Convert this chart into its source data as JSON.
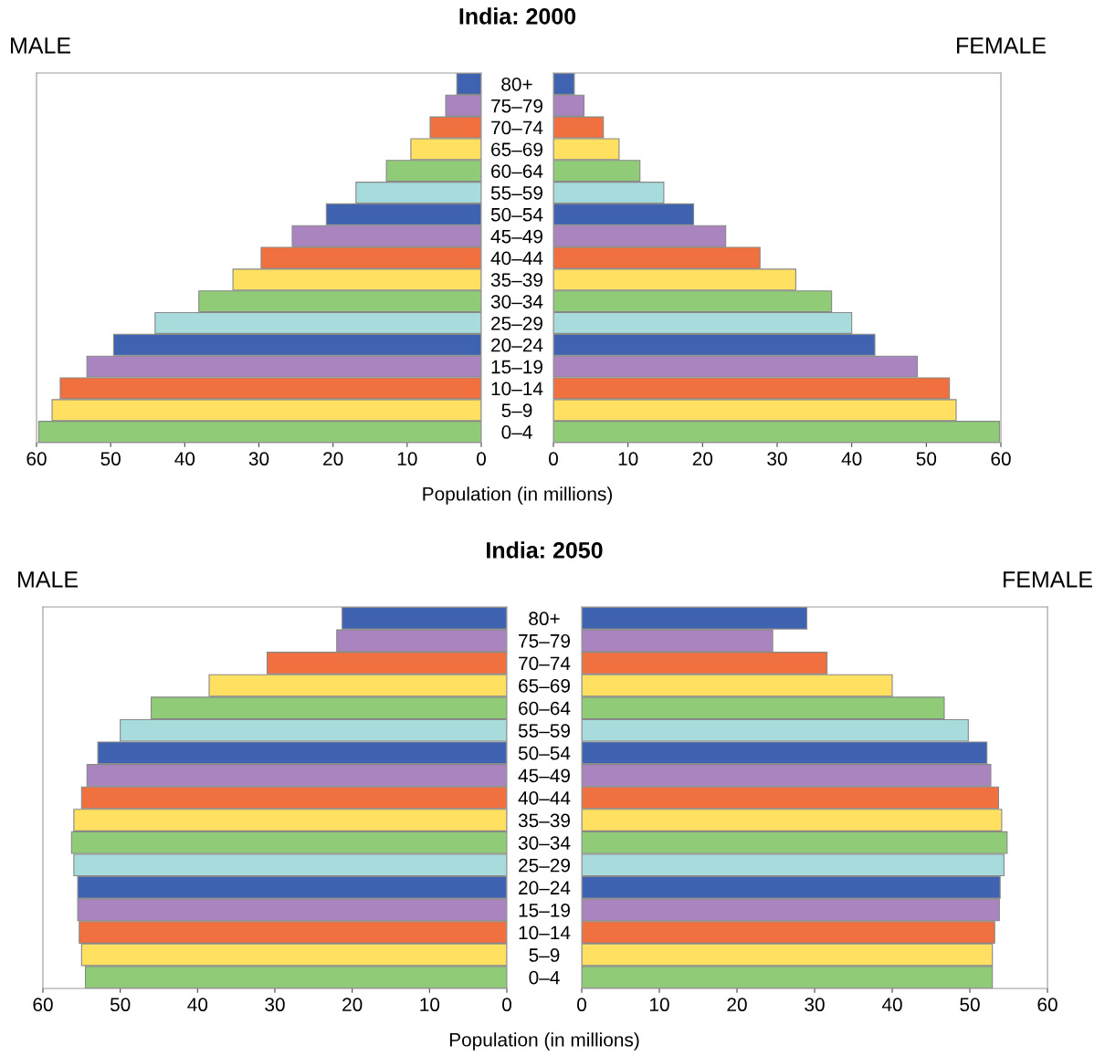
{
  "chart_data": [
    {
      "type": "bar",
      "orientation": "horizontal",
      "title": "MALE",
      "annotations": [
        "India: 2000"
      ],
      "xlabel": "Population (in millions)",
      "categories": [
        "80+",
        "75–79",
        "70–74",
        "65–69",
        "60–64",
        "55–59",
        "50–54",
        "45–49",
        "40–44",
        "35–39",
        "30–34",
        "25–29",
        "20–24",
        "15–19",
        "10–14",
        "5–9",
        "0–4"
      ],
      "values": [
        3.3,
        4.8,
        6.9,
        9.5,
        12.8,
        16.9,
        20.9,
        25.5,
        29.7,
        33.5,
        38.1,
        44,
        49.6,
        53.2,
        56.8,
        57.9,
        59.7
      ],
      "colors": [
        "#3f63b0",
        "#a984bf",
        "#f07040",
        "#ffe060",
        "#90cc78",
        "#a8dcdc",
        "#3f63b0",
        "#a984bf",
        "#f07040",
        "#ffe060",
        "#90cc78",
        "#a8dcdc",
        "#3f63b0",
        "#a984bf",
        "#f07040",
        "#ffe060",
        "#90cc78"
      ],
      "xlim": [
        60,
        0
      ],
      "xticks": [
        60,
        50,
        40,
        30,
        20,
        10,
        0
      ]
    },
    {
      "type": "bar",
      "orientation": "horizontal",
      "title": "FEMALE",
      "tick_labels": "x",
      "categories": [
        null,
        null,
        null,
        null,
        null,
        null,
        null,
        null,
        null,
        null,
        null,
        null,
        null,
        null,
        null,
        null,
        null
      ],
      "values": [
        2.8,
        4.1,
        6.7,
        8.8,
        11.6,
        14.8,
        18.8,
        23.1,
        27.7,
        32.5,
        37.3,
        40,
        43.1,
        48.8,
        53.1,
        54,
        59.8
      ],
      "colors": [
        "#3f63b0",
        "#a984bf",
        "#f07040",
        "#ffe060",
        "#90cc78",
        "#a8dcdc",
        "#3f63b0",
        "#a984bf",
        "#f07040",
        "#ffe060",
        "#90cc78",
        "#a8dcdc",
        "#3f63b0",
        "#a984bf",
        "#f07040",
        "#ffe060",
        "#90cc78"
      ],
      "xlim": [
        0,
        60
      ],
      "xticks": [
        0,
        10,
        20,
        30,
        40,
        50,
        60
      ]
    },
    {
      "type": "bar",
      "orientation": "horizontal",
      "title": "MALE",
      "annotations": [
        "India: 2050"
      ],
      "xlabel": "Population (in millions)",
      "categories": [
        "80+",
        "75–79",
        "70–74",
        "65–69",
        "60–64",
        "55–59",
        "50–54",
        "45–49",
        "40–44",
        "35–39",
        "30–34",
        "25–29",
        "20–24",
        "15–19",
        "10–14",
        "5–9",
        "0–4"
      ],
      "values": [
        21.3,
        22,
        31,
        38.5,
        46,
        50,
        52.9,
        54.3,
        55,
        56,
        56.3,
        56,
        55.5,
        55.5,
        55.3,
        55,
        54.5
      ],
      "colors": [
        "#3f63b0",
        "#a984bf",
        "#f07040",
        "#ffe060",
        "#90cc78",
        "#a8dcdc",
        "#3f63b0",
        "#a984bf",
        "#f07040",
        "#ffe060",
        "#90cc78",
        "#a8dcdc",
        "#3f63b0",
        "#a984bf",
        "#f07040",
        "#ffe060",
        "#90cc78"
      ],
      "xlim": [
        60,
        0
      ],
      "xticks": [
        60,
        50,
        40,
        30,
        20,
        10,
        0
      ]
    },
    {
      "type": "bar",
      "orientation": "horizontal",
      "title": "FEMALE",
      "tick_labels": "x",
      "categories": [
        null,
        null,
        null,
        null,
        null,
        null,
        null,
        null,
        null,
        null,
        null,
        null,
        null,
        null,
        null,
        null,
        null
      ],
      "values": [
        29,
        24.6,
        31.6,
        40,
        46.7,
        49.8,
        52.2,
        52.7,
        53.7,
        54.1,
        54.8,
        54.4,
        53.9,
        53.8,
        53.2,
        52.9,
        52.9
      ],
      "colors": [
        "#3f63b0",
        "#a984bf",
        "#f07040",
        "#ffe060",
        "#90cc78",
        "#a8dcdc",
        "#3f63b0",
        "#a984bf",
        "#f07040",
        "#ffe060",
        "#90cc78",
        "#a8dcdc",
        "#3f63b0",
        "#a984bf",
        "#f07040",
        "#ffe060",
        "#90cc78"
      ],
      "xlim": [
        0,
        60
      ],
      "xticks": [
        0,
        10,
        20,
        30,
        40,
        50,
        60
      ]
    }
  ]
}
